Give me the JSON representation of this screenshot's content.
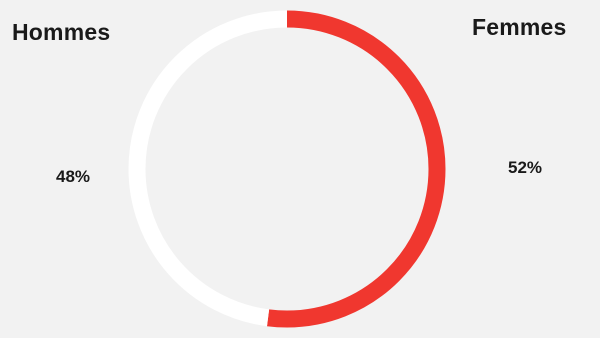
{
  "chart_data": {
    "type": "pie",
    "variant": "donut",
    "categories": [
      "Hommes",
      "Femmes"
    ],
    "values": [
      48,
      52
    ],
    "value_labels": [
      "48%",
      "52%"
    ],
    "colors": [
      "#ffffff",
      "#f0372f"
    ],
    "title": "",
    "legend": "none"
  },
  "background_color": "#f2f2f2"
}
